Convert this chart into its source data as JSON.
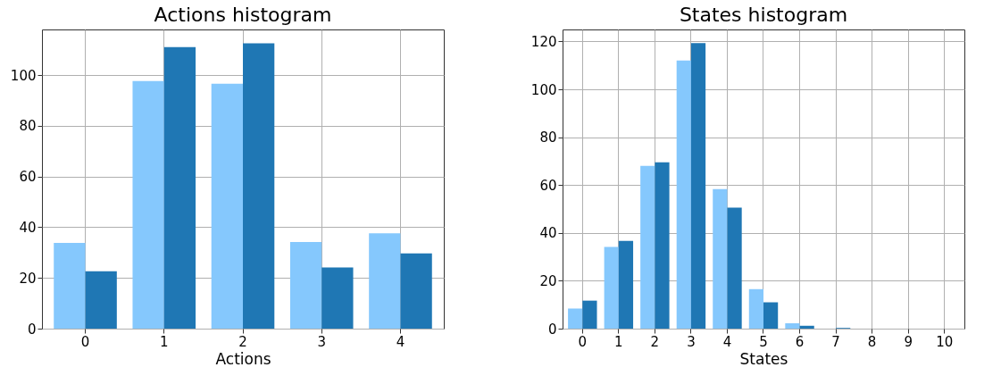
{
  "chart_data": [
    {
      "type": "bar",
      "title": "Actions histogram",
      "xlabel": "Actions",
      "categories": [
        "0",
        "1",
        "2",
        "3",
        "4"
      ],
      "ylim": [
        0,
        118
      ],
      "yticks": [
        0,
        20,
        40,
        60,
        80,
        100
      ],
      "grid": true,
      "series": [
        {
          "color": "#85c8fd",
          "values": [
            33.8,
            97.7,
            96.6,
            34.2,
            37.6
          ]
        },
        {
          "color": "#1f77b4",
          "values": [
            22.6,
            111,
            112.5,
            24.1,
            29.7
          ]
        }
      ]
    },
    {
      "type": "bar",
      "title": "States histogram",
      "xlabel": "States",
      "categories": [
        "0",
        "1",
        "2",
        "3",
        "4",
        "5",
        "6",
        "7",
        "8",
        "9",
        "10"
      ],
      "ylim": [
        0,
        125
      ],
      "yticks": [
        0,
        20,
        40,
        60,
        80,
        100,
        120
      ],
      "grid": true,
      "series": [
        {
          "color": "#85c8fd",
          "values": [
            8.4,
            34.1,
            68,
            112,
            58.3,
            16.5,
            2.2,
            0,
            0,
            0,
            0
          ]
        },
        {
          "color": "#1f77b4",
          "values": [
            11.7,
            36.7,
            69.5,
            119.3,
            50.6,
            11,
            1.2,
            0.3,
            0,
            0,
            0
          ]
        }
      ]
    }
  ]
}
